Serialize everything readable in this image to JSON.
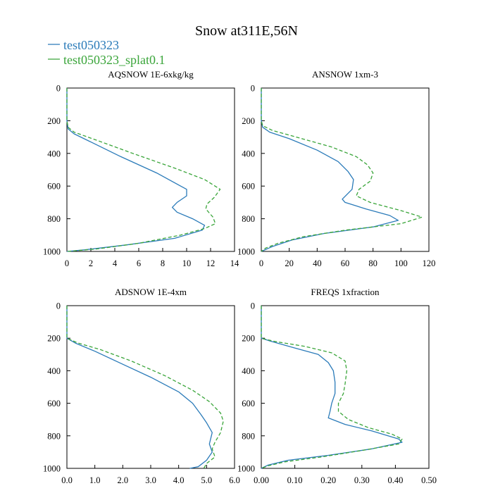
{
  "figure": {
    "title": "Snow at311E,56N",
    "legend": [
      {
        "label": "test050323",
        "color": "#2b7bb9",
        "dash": "solid"
      },
      {
        "label": "test050323_splat0.1",
        "color": "#3aa53a",
        "dash": "dashed"
      }
    ]
  },
  "chart_data": [
    {
      "type": "line",
      "title": "AQSNOW  1E-6xkg/kg",
      "xlim": [
        0,
        14
      ],
      "ylim": [
        1000,
        0
      ],
      "xticks": [
        0,
        2,
        4,
        6,
        8,
        10,
        12,
        14
      ],
      "xtick_labels": [
        "0",
        "2",
        "4",
        "6",
        "8",
        "10",
        "12",
        "14"
      ],
      "yticks": [
        0,
        200,
        400,
        600,
        800,
        1000
      ],
      "ytick_labels": [
        "0",
        "200",
        "400",
        "600",
        "800",
        "1000"
      ],
      "series": [
        {
          "name": "test050323",
          "color": "#2b7bb9",
          "dash": "solid",
          "points": [
            [
              0,
              0
            ],
            [
              0,
              200
            ],
            [
              0.1,
              250
            ],
            [
              0.6,
              280
            ],
            [
              2.0,
              330
            ],
            [
              4.5,
              420
            ],
            [
              7.5,
              520
            ],
            [
              9.5,
              600
            ],
            [
              10,
              620
            ],
            [
              10,
              660
            ],
            [
              9.2,
              700
            ],
            [
              8.8,
              730
            ],
            [
              9.2,
              760
            ],
            [
              10.5,
              800
            ],
            [
              11.5,
              840
            ],
            [
              11.3,
              870
            ],
            [
              9.0,
              920
            ],
            [
              5.0,
              960
            ],
            [
              1.5,
              990
            ],
            [
              0,
              1000
            ]
          ]
        },
        {
          "name": "test050323_splat0.1",
          "color": "#3aa53a",
          "dash": "dashed",
          "points": [
            [
              0,
              0
            ],
            [
              0,
              200
            ],
            [
              0.1,
              240
            ],
            [
              0.6,
              270
            ],
            [
              2.5,
              320
            ],
            [
              5.5,
              400
            ],
            [
              9.0,
              490
            ],
            [
              11.5,
              560
            ],
            [
              12.8,
              620
            ],
            [
              12.3,
              670
            ],
            [
              11.7,
              710
            ],
            [
              11.6,
              740
            ],
            [
              12.2,
              790
            ],
            [
              12.4,
              830
            ],
            [
              11.5,
              860
            ],
            [
              9.5,
              900
            ],
            [
              6.0,
              950
            ],
            [
              2.5,
              985
            ],
            [
              0,
              1000
            ]
          ]
        }
      ]
    },
    {
      "type": "line",
      "title": "ANSNOW  1xm-3",
      "xlim": [
        0,
        120
      ],
      "ylim": [
        1000,
        0
      ],
      "xticks": [
        0,
        20,
        40,
        60,
        80,
        100,
        120
      ],
      "xtick_labels": [
        "0",
        "20",
        "40",
        "60",
        "80",
        "100",
        "120"
      ],
      "yticks": [
        0,
        200,
        400,
        600,
        800,
        1000
      ],
      "ytick_labels": [
        "0",
        "200",
        "400",
        "600",
        "800",
        "1000"
      ],
      "series": [
        {
          "name": "test050323",
          "color": "#2b7bb9",
          "dash": "solid",
          "points": [
            [
              0,
              0
            ],
            [
              0,
              200
            ],
            [
              1,
              240
            ],
            [
              6,
              270
            ],
            [
              20,
              310
            ],
            [
              40,
              380
            ],
            [
              55,
              450
            ],
            [
              62,
              510
            ],
            [
              66,
              560
            ],
            [
              65,
              620
            ],
            [
              58,
              680
            ],
            [
              60,
              700
            ],
            [
              75,
              740
            ],
            [
              92,
              780
            ],
            [
              98,
              810
            ],
            [
              80,
              850
            ],
            [
              45,
              890
            ],
            [
              22,
              930
            ],
            [
              8,
              970
            ],
            [
              0,
              1000
            ]
          ]
        },
        {
          "name": "test050323_splat0.1",
          "color": "#3aa53a",
          "dash": "dashed",
          "points": [
            [
              0,
              0
            ],
            [
              0,
              200
            ],
            [
              1,
              230
            ],
            [
              8,
              260
            ],
            [
              25,
              300
            ],
            [
              50,
              360
            ],
            [
              68,
              420
            ],
            [
              76,
              470
            ],
            [
              80,
              520
            ],
            [
              78,
              570
            ],
            [
              70,
              620
            ],
            [
              68,
              660
            ],
            [
              78,
              700
            ],
            [
              100,
              750
            ],
            [
              115,
              790
            ],
            [
              100,
              830
            ],
            [
              60,
              870
            ],
            [
              30,
              910
            ],
            [
              12,
              950
            ],
            [
              3,
              980
            ],
            [
              0,
              1000
            ]
          ]
        }
      ]
    },
    {
      "type": "line",
      "title": "ADSNOW  1E-4xm",
      "xlim": [
        0,
        6
      ],
      "ylim": [
        1000,
        0
      ],
      "xticks": [
        0,
        1,
        2,
        3,
        4,
        5,
        6
      ],
      "xtick_labels": [
        "0.0",
        "1.0",
        "2.0",
        "3.0",
        "4.0",
        "5.0",
        "6.0"
      ],
      "yticks": [
        0,
        200,
        400,
        600,
        800,
        1000
      ],
      "ytick_labels": [
        "0",
        "200",
        "400",
        "600",
        "800",
        "1000"
      ],
      "series": [
        {
          "name": "test050323",
          "color": "#2b7bb9",
          "dash": "solid",
          "points": [
            [
              0,
              0
            ],
            [
              0,
              200
            ],
            [
              0.3,
              230
            ],
            [
              1.0,
              280
            ],
            [
              2.0,
              360
            ],
            [
              3.0,
              440
            ],
            [
              4.0,
              530
            ],
            [
              4.5,
              600
            ],
            [
              4.8,
              670
            ],
            [
              5.0,
              720
            ],
            [
              5.2,
              780
            ],
            [
              5.1,
              850
            ],
            [
              5.2,
              900
            ],
            [
              5.0,
              950
            ],
            [
              4.7,
              990
            ],
            [
              4.4,
              1000
            ]
          ]
        },
        {
          "name": "test050323_splat0.1",
          "color": "#3aa53a",
          "dash": "dashed",
          "points": [
            [
              0,
              0
            ],
            [
              0,
              200
            ],
            [
              0.4,
              230
            ],
            [
              1.2,
              270
            ],
            [
              2.3,
              340
            ],
            [
              3.5,
              430
            ],
            [
              4.5,
              520
            ],
            [
              5.1,
              590
            ],
            [
              5.5,
              660
            ],
            [
              5.6,
              710
            ],
            [
              5.5,
              780
            ],
            [
              5.3,
              840
            ],
            [
              5.2,
              880
            ],
            [
              5.3,
              930
            ],
            [
              5.0,
              970
            ],
            [
              4.9,
              1000
            ]
          ]
        }
      ]
    },
    {
      "type": "line",
      "title": "FREQS  1xfraction",
      "xlim": [
        0,
        0.5
      ],
      "ylim": [
        1000,
        0
      ],
      "xticks": [
        0,
        0.1,
        0.2,
        0.3,
        0.4,
        0.5
      ],
      "xtick_labels": [
        "0.00",
        "0.10",
        "0.20",
        "0.30",
        "0.40",
        "0.50"
      ],
      "yticks": [
        0,
        200,
        400,
        600,
        800,
        1000
      ],
      "ytick_labels": [
        "0",
        "200",
        "400",
        "600",
        "800",
        "1000"
      ],
      "series": [
        {
          "name": "test050323",
          "color": "#2b7bb9",
          "dash": "solid",
          "points": [
            [
              0,
              0
            ],
            [
              0,
              200
            ],
            [
              0.03,
              220
            ],
            [
              0.1,
              260
            ],
            [
              0.17,
              300
            ],
            [
              0.2,
              350
            ],
            [
              0.215,
              400
            ],
            [
              0.22,
              470
            ],
            [
              0.22,
              540
            ],
            [
              0.21,
              600
            ],
            [
              0.205,
              650
            ],
            [
              0.2,
              690
            ],
            [
              0.25,
              730
            ],
            [
              0.33,
              770
            ],
            [
              0.41,
              820
            ],
            [
              0.42,
              840
            ],
            [
              0.33,
              880
            ],
            [
              0.2,
              920
            ],
            [
              0.08,
              950
            ],
            [
              0.02,
              980
            ],
            [
              0,
              1000
            ]
          ]
        },
        {
          "name": "test050323_splat0.1",
          "color": "#3aa53a",
          "dash": "dashed",
          "points": [
            [
              0,
              0
            ],
            [
              0,
              200
            ],
            [
              0.04,
              220
            ],
            [
              0.13,
              250
            ],
            [
              0.21,
              290
            ],
            [
              0.25,
              340
            ],
            [
              0.255,
              400
            ],
            [
              0.25,
              480
            ],
            [
              0.245,
              540
            ],
            [
              0.23,
              600
            ],
            [
              0.23,
              650
            ],
            [
              0.26,
              700
            ],
            [
              0.32,
              750
            ],
            [
              0.39,
              790
            ],
            [
              0.42,
              820
            ],
            [
              0.41,
              850
            ],
            [
              0.3,
              890
            ],
            [
              0.18,
              930
            ],
            [
              0.07,
              960
            ],
            [
              0.02,
              985
            ],
            [
              0,
              1000
            ]
          ]
        }
      ]
    }
  ]
}
